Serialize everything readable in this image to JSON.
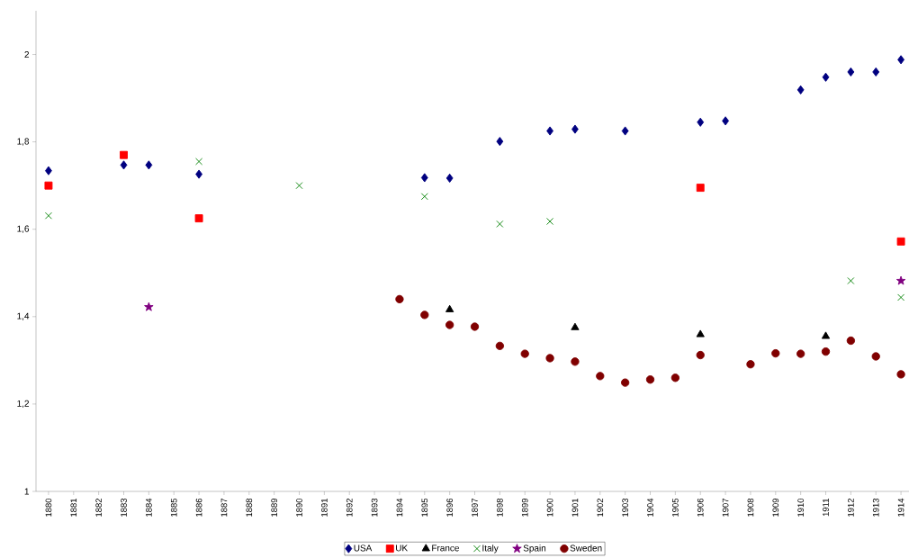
{
  "chart_data": {
    "type": "scatter",
    "categories": [
      "1880",
      "1881",
      "1882",
      "1883",
      "1884",
      "1885",
      "1886",
      "1887",
      "1888",
      "1889",
      "1890",
      "1891",
      "1892",
      "1893",
      "1894",
      "1895",
      "1896",
      "1897",
      "1898",
      "1899",
      "1900",
      "1901",
      "1902",
      "1903",
      "1904",
      "1905",
      "1906",
      "1907",
      "1908",
      "1909",
      "1910",
      "1911",
      "1912",
      "1913",
      "1914"
    ],
    "ylim": [
      1,
      2.1
    ],
    "yticks": [
      1,
      {
        "value": 1.2,
        "label": "1,2"
      },
      {
        "value": 1.4,
        "label": "1,4"
      },
      {
        "value": 1.6,
        "label": "1,6"
      },
      {
        "value": 1.8,
        "label": "1,8"
      },
      2
    ],
    "legend": "bottom",
    "grid": false,
    "series": [
      {
        "name": "USA",
        "color": "#000080",
        "marker": "diamond",
        "values": [
          1.734,
          null,
          null,
          1.747,
          1.747,
          null,
          1.726,
          null,
          null,
          null,
          null,
          null,
          null,
          null,
          null,
          1.718,
          1.717,
          null,
          1.801,
          null,
          1.825,
          1.829,
          null,
          1.825,
          null,
          null,
          1.845,
          1.848,
          null,
          null,
          1.919,
          1.948,
          1.96,
          1.96,
          1.988
        ]
      },
      {
        "name": "UK",
        "color": "#ff0000",
        "marker": "square",
        "values": [
          1.7,
          null,
          null,
          1.77,
          null,
          null,
          1.625,
          null,
          null,
          null,
          null,
          null,
          null,
          null,
          null,
          null,
          null,
          null,
          null,
          null,
          null,
          null,
          null,
          null,
          null,
          null,
          1.695,
          null,
          null,
          null,
          null,
          null,
          null,
          null,
          1.572
        ]
      },
      {
        "name": "France",
        "color": "#000000",
        "marker": "triangle",
        "values": [
          null,
          null,
          null,
          null,
          null,
          null,
          null,
          null,
          null,
          null,
          null,
          null,
          null,
          null,
          null,
          null,
          1.416,
          null,
          null,
          null,
          null,
          1.375,
          null,
          null,
          null,
          null,
          1.359,
          null,
          null,
          null,
          null,
          1.355,
          null,
          null,
          null
        ]
      },
      {
        "name": "Italy",
        "color": "#008000",
        "marker": "cross",
        "values": [
          1.631,
          null,
          null,
          null,
          null,
          null,
          1.755,
          null,
          null,
          null,
          1.7,
          null,
          null,
          null,
          null,
          1.675,
          null,
          null,
          1.612,
          null,
          1.618,
          null,
          null,
          null,
          null,
          null,
          null,
          null,
          null,
          null,
          null,
          null,
          1.482,
          null,
          1.444
        ]
      },
      {
        "name": "Spain",
        "color": "#800080",
        "marker": "star",
        "values": [
          null,
          null,
          null,
          null,
          1.422,
          null,
          null,
          null,
          null,
          null,
          null,
          null,
          null,
          null,
          null,
          null,
          null,
          null,
          null,
          null,
          null,
          null,
          null,
          null,
          null,
          null,
          null,
          null,
          null,
          null,
          null,
          null,
          null,
          null,
          1.482
        ]
      },
      {
        "name": "Sweden",
        "color": "#800000",
        "marker": "circle",
        "values": [
          null,
          null,
          null,
          null,
          null,
          null,
          null,
          null,
          null,
          null,
          null,
          null,
          null,
          null,
          1.44,
          1.404,
          1.381,
          1.377,
          1.333,
          1.315,
          1.305,
          1.297,
          1.264,
          1.249,
          1.256,
          1.26,
          1.312,
          null,
          1.291,
          1.316,
          1.315,
          1.32,
          1.345,
          1.309,
          1.268
        ]
      }
    ]
  }
}
